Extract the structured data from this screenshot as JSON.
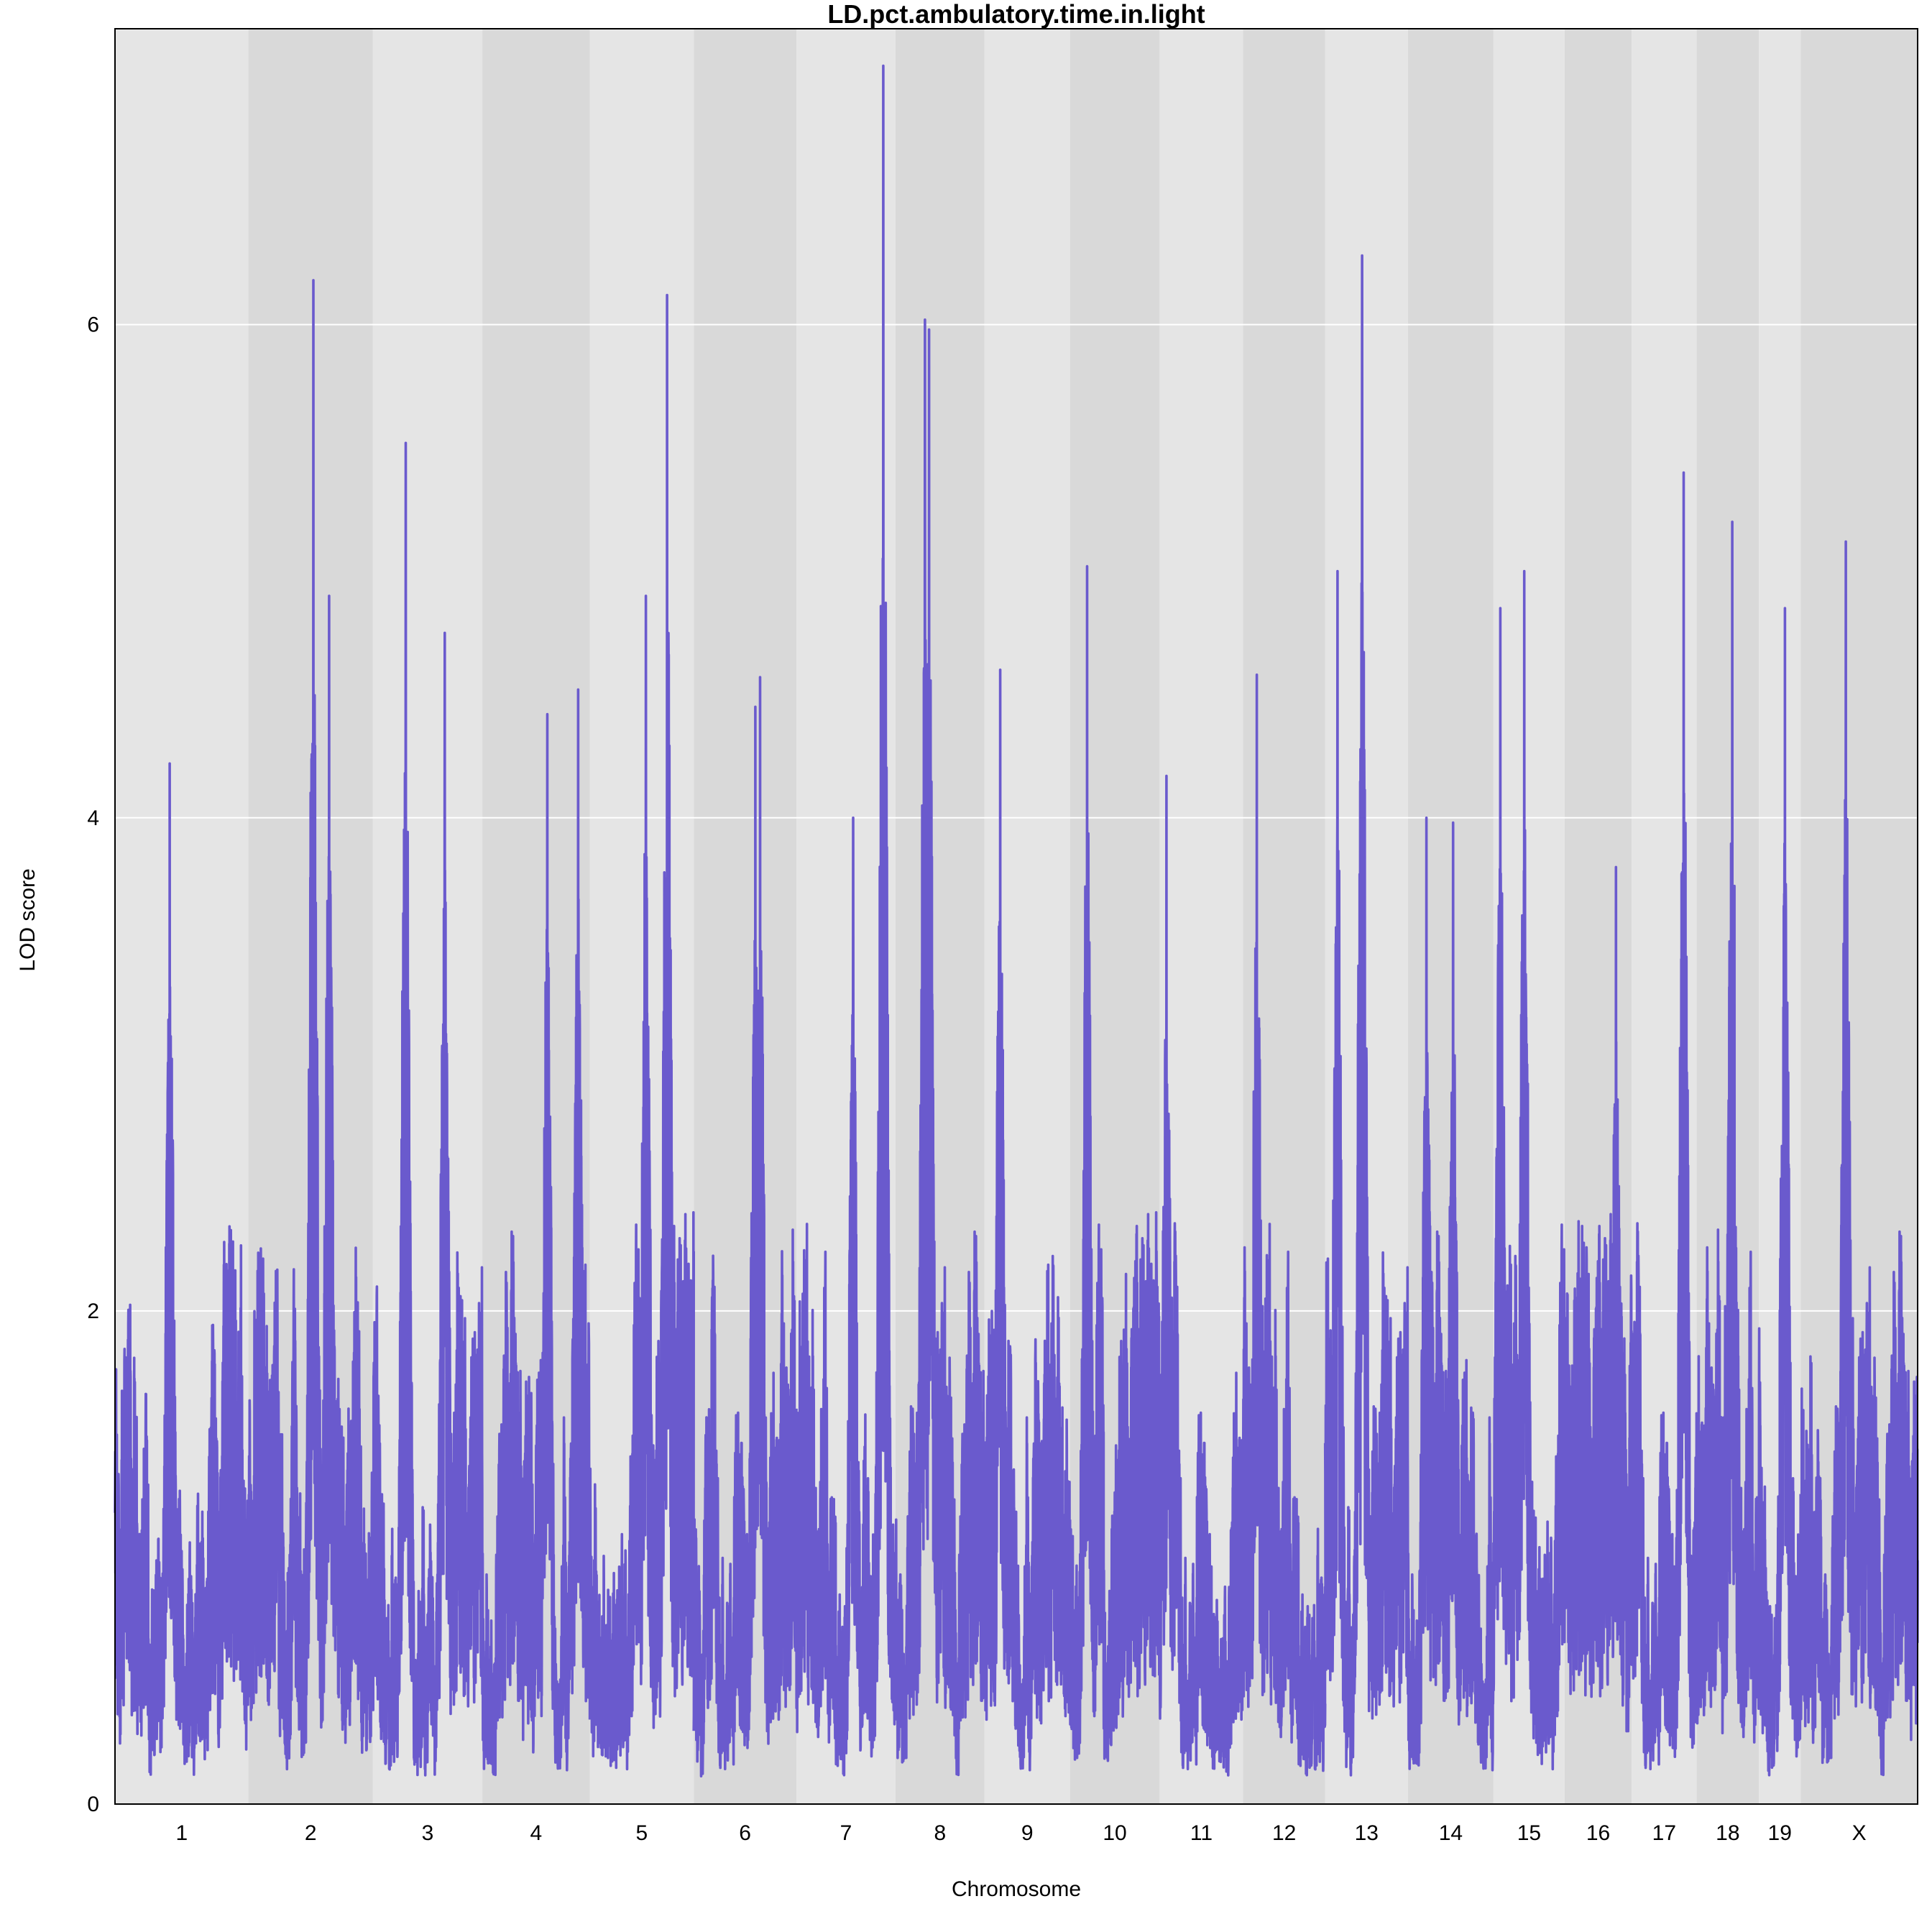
{
  "chart_data": {
    "type": "line",
    "title": "LD.pct.ambulatory.time.in.light",
    "xlabel": "Chromosome",
    "ylabel": "LOD score",
    "ylim": [
      0,
      7.2
    ],
    "yticks": [
      0,
      2,
      4,
      6
    ],
    "grid": true,
    "legend": "none",
    "colors": {
      "line": "#6a5acd",
      "band_light": "#e5e5e5",
      "band_dark": "#d9d9d9",
      "gridline": "#ffffff"
    },
    "chromosomes": [
      "1",
      "2",
      "3",
      "4",
      "5",
      "6",
      "7",
      "8",
      "9",
      "10",
      "11",
      "12",
      "13",
      "14",
      "15",
      "16",
      "17",
      "18",
      "19",
      "X"
    ],
    "chromosome_lengths": [
      195,
      182,
      160,
      157,
      152,
      150,
      145,
      130,
      125,
      131,
      122,
      120,
      121,
      125,
      104,
      98,
      95,
      91,
      61,
      171
    ],
    "peaks": [
      {
        "chr": "1",
        "pos": 80,
        "lod": 4.22
      },
      {
        "chr": "2",
        "pos": 95,
        "lod": 6.18
      },
      {
        "chr": "2",
        "pos": 118,
        "lod": 4.9
      },
      {
        "chr": "3",
        "pos": 48,
        "lod": 5.52
      },
      {
        "chr": "3",
        "pos": 105,
        "lod": 4.75
      },
      {
        "chr": "4",
        "pos": 95,
        "lod": 4.42
      },
      {
        "chr": "4",
        "pos": 140,
        "lod": 4.52
      },
      {
        "chr": "5",
        "pos": 82,
        "lod": 4.9
      },
      {
        "chr": "5",
        "pos": 113,
        "lod": 6.12
      },
      {
        "chr": "6",
        "pos": 90,
        "lod": 4.45
      },
      {
        "chr": "6",
        "pos": 97,
        "lod": 4.57
      },
      {
        "chr": "7",
        "pos": 83,
        "lod": 4.0
      },
      {
        "chr": "7",
        "pos": 127,
        "lod": 7.05
      },
      {
        "chr": "8",
        "pos": 43,
        "lod": 6.02
      },
      {
        "chr": "8",
        "pos": 49,
        "lod": 5.98
      },
      {
        "chr": "9",
        "pos": 23,
        "lod": 4.6
      },
      {
        "chr": "10",
        "pos": 25,
        "lod": 5.02
      },
      {
        "chr": "11",
        "pos": 10,
        "lod": 4.17
      },
      {
        "chr": "12",
        "pos": 20,
        "lod": 4.58
      },
      {
        "chr": "13",
        "pos": 18,
        "lod": 5.0
      },
      {
        "chr": "13",
        "pos": 54,
        "lod": 6.28
      },
      {
        "chr": "14",
        "pos": 27,
        "lod": 4.0
      },
      {
        "chr": "14",
        "pos": 66,
        "lod": 3.98
      },
      {
        "chr": "15",
        "pos": 10,
        "lod": 4.85
      },
      {
        "chr": "15",
        "pos": 45,
        "lod": 5.0
      },
      {
        "chr": "16",
        "pos": 75,
        "lod": 3.8
      },
      {
        "chr": "17",
        "pos": 76,
        "lod": 5.4
      },
      {
        "chr": "18",
        "pos": 52,
        "lod": 5.2
      },
      {
        "chr": "19",
        "pos": 38,
        "lod": 4.85
      },
      {
        "chr": "X",
        "pos": 66,
        "lod": 5.12
      }
    ]
  }
}
